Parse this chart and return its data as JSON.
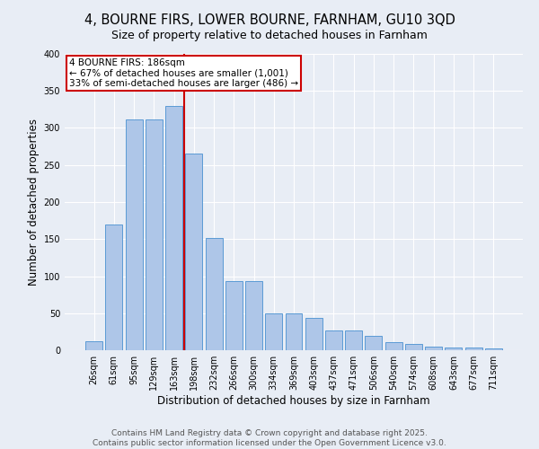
{
  "title1": "4, BOURNE FIRS, LOWER BOURNE, FARNHAM, GU10 3QD",
  "title2": "Size of property relative to detached houses in Farnham",
  "xlabel": "Distribution of detached houses by size in Farnham",
  "ylabel": "Number of detached properties",
  "categories": [
    "26sqm",
    "61sqm",
    "95sqm",
    "129sqm",
    "163sqm",
    "198sqm",
    "232sqm",
    "266sqm",
    "300sqm",
    "334sqm",
    "369sqm",
    "403sqm",
    "437sqm",
    "471sqm",
    "506sqm",
    "540sqm",
    "574sqm",
    "608sqm",
    "643sqm",
    "677sqm",
    "711sqm"
  ],
  "values": [
    12,
    170,
    311,
    311,
    330,
    265,
    151,
    93,
    93,
    50,
    50,
    44,
    27,
    27,
    19,
    11,
    8,
    5,
    4,
    4,
    2
  ],
  "bar_color": "#aec6e8",
  "bar_edge_color": "#5b9bd5",
  "background_color": "#e8edf5",
  "fig_background_color": "#e8edf5",
  "grid_color": "#ffffff",
  "annotation_text_line1": "4 BOURNE FIRS: 186sqm",
  "annotation_text_line2": "← 67% of detached houses are smaller (1,001)",
  "annotation_text_line3": "33% of semi-detached houses are larger (486) →",
  "annotation_box_color": "#ffffff",
  "annotation_box_edge": "#cc0000",
  "vline_color": "#cc0000",
  "footer1": "Contains HM Land Registry data © Crown copyright and database right 2025.",
  "footer2": "Contains public sector information licensed under the Open Government Licence v3.0.",
  "ylim": [
    0,
    400
  ],
  "yticks": [
    0,
    50,
    100,
    150,
    200,
    250,
    300,
    350,
    400
  ],
  "title1_fontsize": 10.5,
  "title2_fontsize": 9,
  "axis_label_fontsize": 8.5,
  "tick_fontsize": 7,
  "footer_fontsize": 6.5,
  "annotation_fontsize": 7.5
}
